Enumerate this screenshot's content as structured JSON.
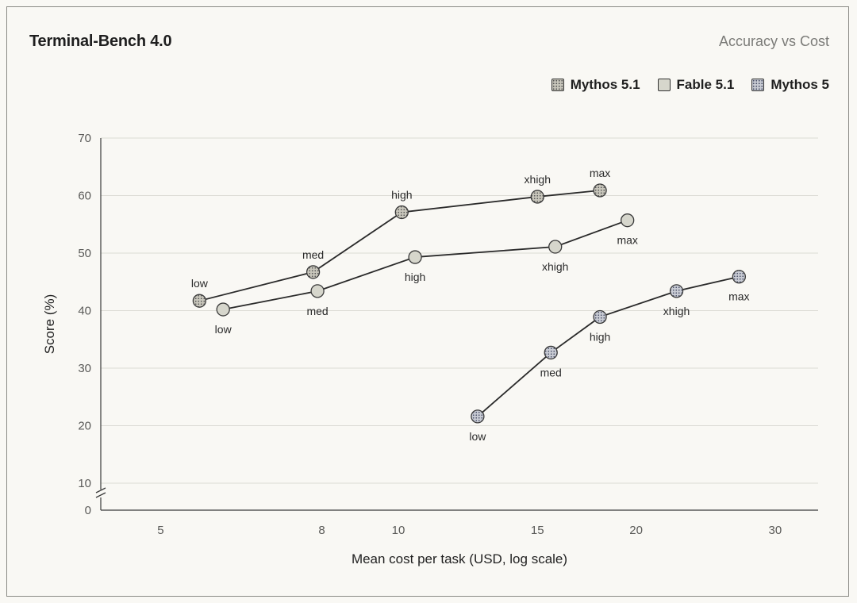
{
  "chart_data": {
    "type": "line",
    "title": "Terminal-Bench 4.0",
    "subtitle": "Accuracy vs Cost",
    "xlabel": "Mean cost per task (USD, log scale)",
    "ylabel": "Score (%)",
    "x_scale": "log",
    "xlim": [
      4.2,
      34
    ],
    "ylim": [
      0,
      70
    ],
    "y_axis_break": true,
    "x_ticks": [
      5,
      8,
      10,
      15,
      20,
      30
    ],
    "y_ticks": [
      0,
      10,
      20,
      30,
      40,
      50,
      60,
      70
    ],
    "grid": "horizontal",
    "legend_position": "top-right",
    "series": [
      {
        "name": "Mythos 5.1",
        "color": "#c9c7bc",
        "pattern": "dots-fine",
        "points": [
          {
            "x": 5.6,
            "y": 41.7,
            "label": "low",
            "label_pos": "above"
          },
          {
            "x": 7.8,
            "y": 46.7,
            "label": "med",
            "label_pos": "above"
          },
          {
            "x": 10.1,
            "y": 57.1,
            "label": "high",
            "label_pos": "above"
          },
          {
            "x": 15.0,
            "y": 59.8,
            "label": "xhigh",
            "label_pos": "above"
          },
          {
            "x": 18.0,
            "y": 60.9,
            "label": "max",
            "label_pos": "above"
          }
        ]
      },
      {
        "name": "Fable 5.1",
        "color": "#d6d6cc",
        "pattern": "solid",
        "points": [
          {
            "x": 6.0,
            "y": 40.2,
            "label": "low",
            "label_pos": "below"
          },
          {
            "x": 7.9,
            "y": 43.4,
            "label": "med",
            "label_pos": "below"
          },
          {
            "x": 10.5,
            "y": 49.3,
            "label": "high",
            "label_pos": "below"
          },
          {
            "x": 15.8,
            "y": 51.1,
            "label": "xhigh",
            "label_pos": "below"
          },
          {
            "x": 19.5,
            "y": 55.7,
            "label": "max",
            "label_pos": "below"
          }
        ]
      },
      {
        "name": "Mythos 5",
        "color": "#c9ccd4",
        "pattern": "dots-blue",
        "points": [
          {
            "x": 12.6,
            "y": 21.6,
            "label": "low",
            "label_pos": "below"
          },
          {
            "x": 15.6,
            "y": 32.7,
            "label": "med",
            "label_pos": "below"
          },
          {
            "x": 18.0,
            "y": 38.9,
            "label": "high",
            "label_pos": "below"
          },
          {
            "x": 22.5,
            "y": 43.4,
            "label": "xhigh",
            "label_pos": "below"
          },
          {
            "x": 27.0,
            "y": 45.9,
            "label": "max",
            "label_pos": "below"
          }
        ]
      }
    ]
  }
}
